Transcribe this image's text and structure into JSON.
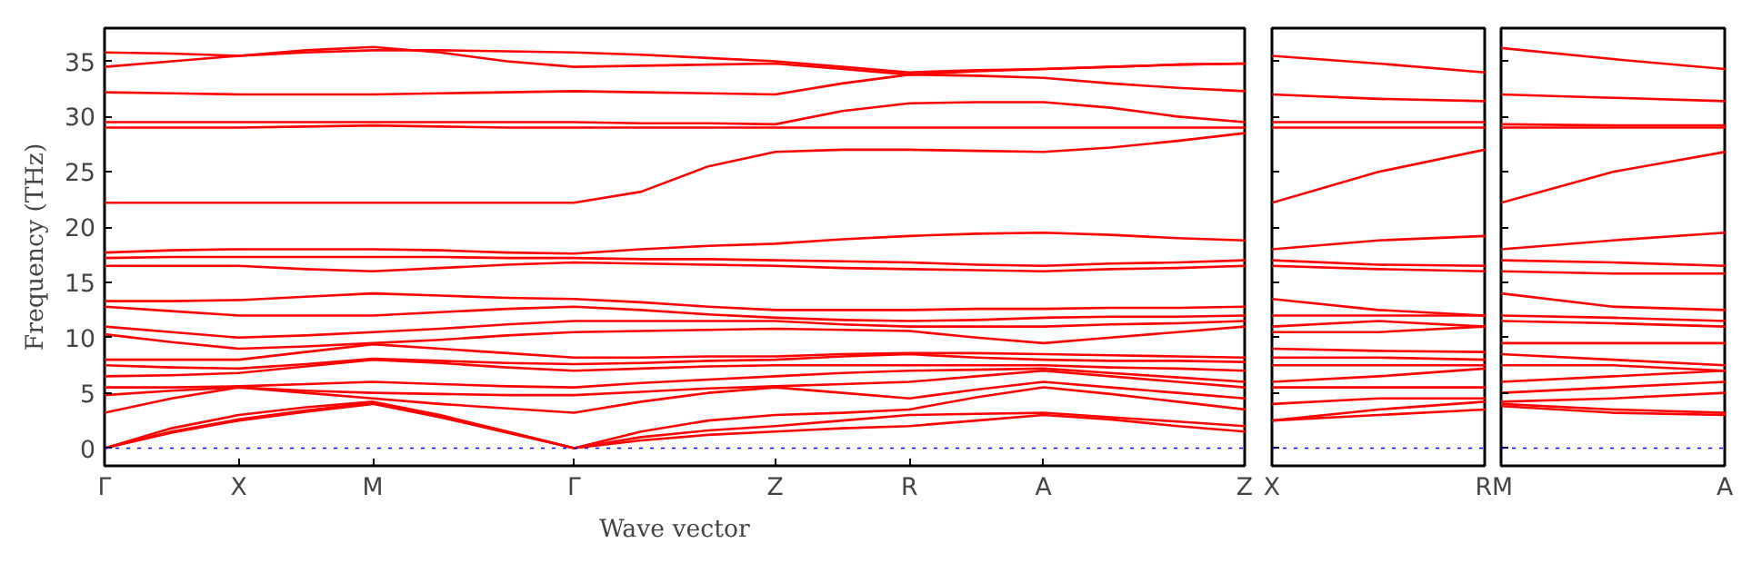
{
  "chart_data": [
    {
      "type": "line",
      "xlabel": "Wave vector",
      "ylabel": "Frequency (THz)",
      "grid": false,
      "ylim": [
        -1.6,
        38
      ],
      "categories": [
        "Γ",
        null,
        "X",
        null,
        "M",
        null,
        null,
        "Γ",
        null,
        null,
        "Z",
        null,
        "R",
        null,
        "A",
        null,
        null,
        "Z"
      ],
      "yticks": [
        0,
        5,
        10,
        15,
        20,
        25,
        30,
        35
      ],
      "ref_lines": [
        {
          "axis": "y",
          "value": 0,
          "color": "#0000ff",
          "line_style": "dotted"
        }
      ],
      "series": [
        {
          "color": "#ff0000",
          "values": [
            0,
            1.4,
            2.5,
            3.3,
            4.0,
            2.8,
            1.4,
            0,
            0.7,
            1.2,
            1.5,
            1.8,
            2.0,
            2.5,
            3.0,
            2.6,
            2.0,
            1.5
          ]
        },
        {
          "color": "#ff0000",
          "values": [
            0,
            1.5,
            2.6,
            3.4,
            4.1,
            2.9,
            1.5,
            0,
            1.0,
            1.6,
            2.0,
            2.5,
            3.0,
            3.1,
            3.2,
            2.8,
            2.4,
            2.0
          ]
        },
        {
          "color": "#ff0000",
          "values": [
            0,
            1.8,
            3.0,
            3.7,
            4.2,
            3.0,
            1.5,
            0,
            1.5,
            2.5,
            3.0,
            3.2,
            3.5,
            4.6,
            5.5,
            4.9,
            4.2,
            3.5
          ]
        },
        {
          "color": "#ff0000",
          "values": [
            3.2,
            4.5,
            5.5,
            5.0,
            4.5,
            4.0,
            3.6,
            3.2,
            4.2,
            5.0,
            5.5,
            5.0,
            4.5,
            5.3,
            6.0,
            5.5,
            5.0,
            4.5
          ]
        },
        {
          "color": "#ff0000",
          "values": [
            4.8,
            5.2,
            5.5,
            5.2,
            5.0,
            4.9,
            4.8,
            4.8,
            5.1,
            5.4,
            5.6,
            5.8,
            6.0,
            6.5,
            7.0,
            6.5,
            6.0,
            5.5
          ]
        },
        {
          "color": "#ff0000",
          "values": [
            5.5,
            5.5,
            5.6,
            5.8,
            6.0,
            5.8,
            5.6,
            5.5,
            5.9,
            6.2,
            6.5,
            6.8,
            7.0,
            7.1,
            7.2,
            6.8,
            6.4,
            6.0
          ]
        },
        {
          "color": "#ff0000",
          "values": [
            6.5,
            6.6,
            6.8,
            7.4,
            8.0,
            7.7,
            7.3,
            7.0,
            7.2,
            7.4,
            7.5,
            7.5,
            7.5,
            7.5,
            7.5,
            7.3,
            7.2,
            7.0
          ]
        },
        {
          "color": "#ff0000",
          "values": [
            7.5,
            7.3,
            7.2,
            7.6,
            8.1,
            7.9,
            7.7,
            7.6,
            7.7,
            7.9,
            8.0,
            8.3,
            8.5,
            8.2,
            8.0,
            7.9,
            7.9,
            7.8
          ]
        },
        {
          "color": "#ff0000",
          "values": [
            8.0,
            8.0,
            8.0,
            8.7,
            9.4,
            9.0,
            8.6,
            8.2,
            8.2,
            8.3,
            8.3,
            8.5,
            8.6,
            8.6,
            8.5,
            8.4,
            8.3,
            8.2
          ]
        },
        {
          "color": "#ff0000",
          "values": [
            10.3,
            9.6,
            9.0,
            9.2,
            9.5,
            9.8,
            10.2,
            10.5,
            10.6,
            10.7,
            10.8,
            10.7,
            10.6,
            10.0,
            9.5,
            10.0,
            10.5,
            11.0
          ]
        },
        {
          "color": "#ff0000",
          "values": [
            11.0,
            10.5,
            10.0,
            10.2,
            10.5,
            10.8,
            11.2,
            11.5,
            11.5,
            11.5,
            11.5,
            11.2,
            11.0,
            11.0,
            11.0,
            11.2,
            11.3,
            11.5
          ]
        },
        {
          "color": "#ff0000",
          "values": [
            12.8,
            12.4,
            12.0,
            12.0,
            12.0,
            12.3,
            12.6,
            12.8,
            12.5,
            12.1,
            11.8,
            11.6,
            11.5,
            11.6,
            11.8,
            11.9,
            11.9,
            12.0
          ]
        },
        {
          "color": "#ff0000",
          "values": [
            13.3,
            13.3,
            13.4,
            13.7,
            14.0,
            13.8,
            13.6,
            13.5,
            13.2,
            12.8,
            12.5,
            12.5,
            12.5,
            12.6,
            12.6,
            12.7,
            12.7,
            12.8
          ]
        },
        {
          "color": "#ff0000",
          "values": [
            16.5,
            16.5,
            16.5,
            16.2,
            16.0,
            16.3,
            16.6,
            16.8,
            16.7,
            16.6,
            16.5,
            16.3,
            16.2,
            16.1,
            16.0,
            16.2,
            16.3,
            16.5
          ]
        },
        {
          "color": "#ff0000",
          "values": [
            17.2,
            17.3,
            17.3,
            17.3,
            17.3,
            17.3,
            17.2,
            17.2,
            17.1,
            17.1,
            17.0,
            16.9,
            16.8,
            16.6,
            16.5,
            16.7,
            16.8,
            17.0
          ]
        },
        {
          "color": "#ff0000",
          "values": [
            17.7,
            17.9,
            18.0,
            18.0,
            18.0,
            17.9,
            17.7,
            17.6,
            18.0,
            18.3,
            18.5,
            18.9,
            19.2,
            19.4,
            19.5,
            19.3,
            19.0,
            18.8
          ]
        },
        {
          "color": "#ff0000",
          "values": [
            22.2,
            22.2,
            22.2,
            22.2,
            22.2,
            22.2,
            22.2,
            22.2,
            23.2,
            25.5,
            26.8,
            27.0,
            27.0,
            26.9,
            26.8,
            27.2,
            27.8,
            28.5
          ]
        },
        {
          "color": "#ff0000",
          "values": [
            29.0,
            29.0,
            29.0,
            29.1,
            29.2,
            29.1,
            29.0,
            29.0,
            29.0,
            29.0,
            29.0,
            29.0,
            29.0,
            29.0,
            29.0,
            29.0,
            29.0,
            29.0
          ]
        },
        {
          "color": "#ff0000",
          "values": [
            29.5,
            29.5,
            29.5,
            29.5,
            29.5,
            29.5,
            29.5,
            29.5,
            29.4,
            29.4,
            29.3,
            30.5,
            31.2,
            31.3,
            31.3,
            30.8,
            30.0,
            29.5
          ]
        },
        {
          "color": "#ff0000",
          "values": [
            32.2,
            32.1,
            32.0,
            32.0,
            32.0,
            32.1,
            32.2,
            32.3,
            32.2,
            32.1,
            32.0,
            33.0,
            33.8,
            33.7,
            33.5,
            33.0,
            32.6,
            32.3
          ]
        },
        {
          "color": "#ff0000",
          "values": [
            34.5,
            35.0,
            35.5,
            36.0,
            36.3,
            35.8,
            35.0,
            34.5,
            34.6,
            34.7,
            34.8,
            34.3,
            33.8,
            34.1,
            34.3,
            34.5,
            34.7,
            34.8
          ]
        },
        {
          "color": "#ff0000",
          "values": [
            35.8,
            35.7,
            35.5,
            35.8,
            36.0,
            36.0,
            35.9,
            35.8,
            35.6,
            35.3,
            35.0,
            34.5,
            34.0,
            34.2,
            34.3,
            34.5,
            34.7,
            34.8
          ]
        }
      ]
    },
    {
      "type": "line",
      "grid": false,
      "tick_labels": "x",
      "ylim": [
        -1.6,
        38
      ],
      "categories": [
        "X",
        null,
        "R"
      ],
      "yticks": [
        0,
        5,
        10,
        15,
        20,
        25,
        30,
        35
      ],
      "ref_lines": [
        {
          "axis": "y",
          "value": 0,
          "color": "#0000ff",
          "line_style": "dotted"
        }
      ],
      "series": [
        {
          "color": "#ff0000",
          "values": [
            35.5,
            34.8,
            34.0
          ]
        },
        {
          "color": "#ff0000",
          "values": [
            32.0,
            31.6,
            31.4
          ]
        },
        {
          "color": "#ff0000",
          "values": [
            29.5,
            29.5,
            29.5
          ]
        },
        {
          "color": "#ff0000",
          "values": [
            29.0,
            29.0,
            29.0
          ]
        },
        {
          "color": "#ff0000",
          "values": [
            22.2,
            25.0,
            27.0
          ]
        },
        {
          "color": "#ff0000",
          "values": [
            18.0,
            18.8,
            19.2
          ]
        },
        {
          "color": "#ff0000",
          "values": [
            17.0,
            16.6,
            16.5
          ]
        },
        {
          "color": "#ff0000",
          "values": [
            16.5,
            16.2,
            16.0
          ]
        },
        {
          "color": "#ff0000",
          "values": [
            13.5,
            12.5,
            12.0
          ]
        },
        {
          "color": "#ff0000",
          "values": [
            12.0,
            12.0,
            12.0
          ]
        },
        {
          "color": "#ff0000",
          "values": [
            11.0,
            11.5,
            11.0
          ]
        },
        {
          "color": "#ff0000",
          "values": [
            10.5,
            10.5,
            11.0
          ]
        },
        {
          "color": "#ff0000",
          "values": [
            9.0,
            8.8,
            8.7
          ]
        },
        {
          "color": "#ff0000",
          "values": [
            8.2,
            8.2,
            8.0
          ]
        },
        {
          "color": "#ff0000",
          "values": [
            7.5,
            7.5,
            7.5
          ]
        },
        {
          "color": "#ff0000",
          "values": [
            6.0,
            6.5,
            7.2
          ]
        },
        {
          "color": "#ff0000",
          "values": [
            5.5,
            5.5,
            5.5
          ]
        },
        {
          "color": "#ff0000",
          "values": [
            4.0,
            4.5,
            4.5
          ]
        },
        {
          "color": "#ff0000",
          "values": [
            2.5,
            3.5,
            4.2
          ]
        },
        {
          "color": "#ff0000",
          "values": [
            2.5,
            3.0,
            3.5
          ]
        }
      ]
    },
    {
      "type": "line",
      "grid": false,
      "tick_labels": "x",
      "ylim": [
        -1.6,
        38
      ],
      "categories": [
        "M",
        null,
        "A"
      ],
      "yticks": [
        0,
        5,
        10,
        15,
        20,
        25,
        30,
        35
      ],
      "ref_lines": [
        {
          "axis": "y",
          "value": 0,
          "color": "#0000ff",
          "line_style": "dotted"
        }
      ],
      "series": [
        {
          "color": "#ff0000",
          "values": [
            36.2,
            35.2,
            34.3
          ]
        },
        {
          "color": "#ff0000",
          "values": [
            32.0,
            31.7,
            31.4
          ]
        },
        {
          "color": "#ff0000",
          "values": [
            29.3,
            29.2,
            29.2
          ]
        },
        {
          "color": "#ff0000",
          "values": [
            29.0,
            29.0,
            29.0
          ]
        },
        {
          "color": "#ff0000",
          "values": [
            22.2,
            25.0,
            26.8
          ]
        },
        {
          "color": "#ff0000",
          "values": [
            18.0,
            18.8,
            19.5
          ]
        },
        {
          "color": "#ff0000",
          "values": [
            17.0,
            16.8,
            16.5
          ]
        },
        {
          "color": "#ff0000",
          "values": [
            16.0,
            15.8,
            15.8
          ]
        },
        {
          "color": "#ff0000",
          "values": [
            14.0,
            12.8,
            12.5
          ]
        },
        {
          "color": "#ff0000",
          "values": [
            12.0,
            11.8,
            11.5
          ]
        },
        {
          "color": "#ff0000",
          "values": [
            11.5,
            11.3,
            11.0
          ]
        },
        {
          "color": "#ff0000",
          "values": [
            9.5,
            9.5,
            9.5
          ]
        },
        {
          "color": "#ff0000",
          "values": [
            8.5,
            8.0,
            7.5
          ]
        },
        {
          "color": "#ff0000",
          "values": [
            7.5,
            7.5,
            7.0
          ]
        },
        {
          "color": "#ff0000",
          "values": [
            6.0,
            6.5,
            7.0
          ]
        },
        {
          "color": "#ff0000",
          "values": [
            5.0,
            5.5,
            6.0
          ]
        },
        {
          "color": "#ff0000",
          "values": [
            4.2,
            4.5,
            5.0
          ]
        },
        {
          "color": "#ff0000",
          "values": [
            4.0,
            3.5,
            3.2
          ]
        },
        {
          "color": "#ff0000",
          "values": [
            3.8,
            3.2,
            3.0
          ]
        }
      ]
    }
  ]
}
